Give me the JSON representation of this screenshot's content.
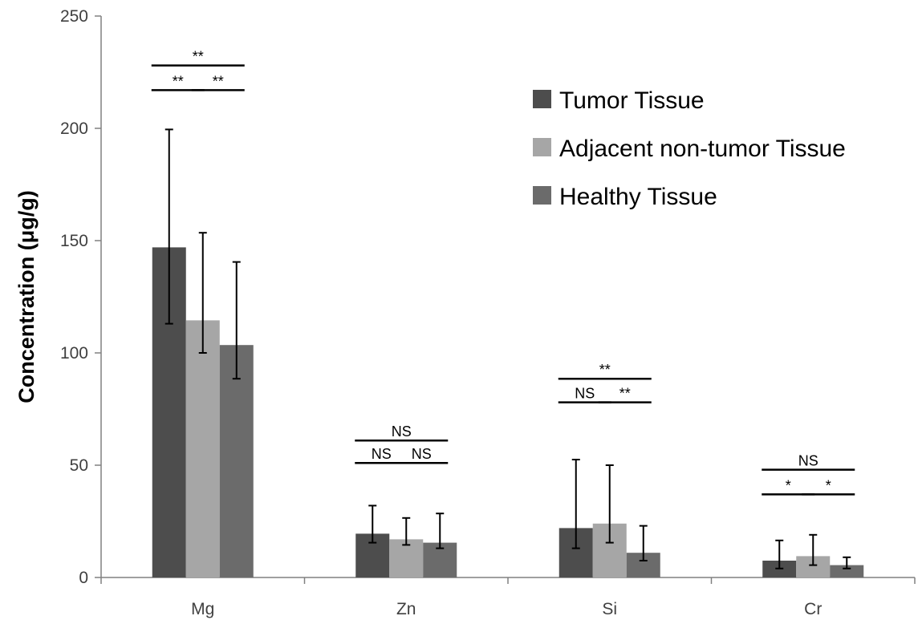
{
  "chart_data": {
    "type": "bar",
    "ylabel": "Concentration (μg/g)",
    "xlabel": "",
    "ylim": [
      0,
      250
    ],
    "yticks": [
      0,
      50,
      100,
      150,
      200,
      250
    ],
    "categories": [
      "Mg",
      "Zn",
      "Si",
      "Cr"
    ],
    "grid": false,
    "legend_position": "top-right",
    "series": [
      {
        "name": "Tumor Tissue",
        "color": "#4d4d4d",
        "values": [
          147,
          19.5,
          22,
          7.5
        ],
        "err_low": [
          113,
          15.5,
          13,
          4
        ],
        "err_high": [
          199.5,
          32,
          52.5,
          16.5
        ]
      },
      {
        "name": "Adjacent non-tumor Tissue",
        "color": "#a6a6a6",
        "values": [
          114.5,
          17,
          24,
          9.5
        ],
        "err_low": [
          100,
          14.5,
          15.5,
          5.5
        ],
        "err_high": [
          153.5,
          26.5,
          50,
          19
        ]
      },
      {
        "name": "Healthy Tissue",
        "color": "#6b6b6b",
        "values": [
          103.5,
          15.5,
          11,
          5.5
        ],
        "err_low": [
          88.5,
          13,
          7.5,
          4
        ],
        "err_high": [
          140.5,
          28.5,
          23,
          9
        ]
      }
    ],
    "significance": [
      {
        "category": "Mg",
        "pair": [
          0,
          2
        ],
        "label": "**",
        "y": 228
      },
      {
        "category": "Mg",
        "pair": [
          0,
          1
        ],
        "label": "**",
        "y": 217
      },
      {
        "category": "Mg",
        "pair": [
          1,
          2
        ],
        "label": "**",
        "y": 217
      },
      {
        "category": "Zn",
        "pair": [
          0,
          2
        ],
        "label": "NS",
        "y": 61
      },
      {
        "category": "Zn",
        "pair": [
          0,
          1
        ],
        "label": "NS",
        "y": 51
      },
      {
        "category": "Zn",
        "pair": [
          1,
          2
        ],
        "label": "NS",
        "y": 51
      },
      {
        "category": "Si",
        "pair": [
          0,
          2
        ],
        "label": "**",
        "y": 88.5
      },
      {
        "category": "Si",
        "pair": [
          0,
          1
        ],
        "label": "NS",
        "y": 78
      },
      {
        "category": "Si",
        "pair": [
          1,
          2
        ],
        "label": "**",
        "y": 78
      },
      {
        "category": "Cr",
        "pair": [
          0,
          2
        ],
        "label": "NS",
        "y": 48
      },
      {
        "category": "Cr",
        "pair": [
          0,
          1
        ],
        "label": "*",
        "y": 37
      },
      {
        "category": "Cr",
        "pair": [
          1,
          2
        ],
        "label": "*",
        "y": 37
      }
    ]
  }
}
